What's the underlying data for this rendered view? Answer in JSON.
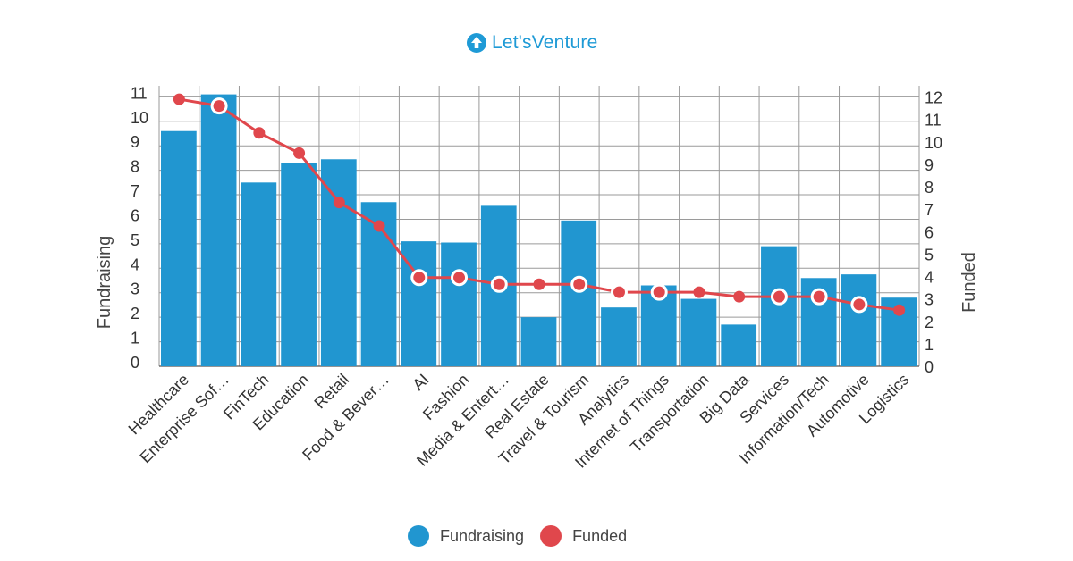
{
  "brand": {
    "name": "Let'sVenture",
    "color": "#1e9ad6"
  },
  "colors": {
    "bar": "#2196d0",
    "line": "#e0474c",
    "grid": "#9a9a9a",
    "text": "#333333"
  },
  "chart_data": {
    "type": "bar",
    "categories": [
      "Healthcare",
      "Enterprise Sof…",
      "FinTech",
      "Education",
      "Retail",
      "Food & Bever…",
      "AI",
      "Fashion",
      "Media & Entert…",
      "Real Estate",
      "Travel & Tourism",
      "Analytics",
      "Internet of Things",
      "Transportation",
      "Big Data",
      "Services",
      "Information/Tech",
      "Automotive",
      "Logistics"
    ],
    "series": [
      {
        "name": "Fundraising",
        "type": "bar",
        "axis": "left",
        "values": [
          9.6,
          11.1,
          7.5,
          8.3,
          8.45,
          6.7,
          5.1,
          5.05,
          6.55,
          2.0,
          5.95,
          2.4,
          3.3,
          2.75,
          1.7,
          4.9,
          3.6,
          3.75,
          2.8
        ]
      },
      {
        "name": "Funded",
        "type": "line",
        "axis": "right",
        "values": [
          11.9,
          11.6,
          10.4,
          9.5,
          7.3,
          6.25,
          3.95,
          3.95,
          3.65,
          3.65,
          3.65,
          3.3,
          3.3,
          3.3,
          3.1,
          3.1,
          3.1,
          2.75,
          2.5
        ]
      }
    ],
    "y_left": {
      "label": "Fundraising",
      "ticks": [
        0,
        1,
        2,
        3,
        4,
        5,
        6,
        7,
        8,
        9,
        10,
        11
      ],
      "range": [
        0,
        11.45
      ]
    },
    "y_right": {
      "label": "Funded",
      "ticks": [
        0,
        1,
        2,
        3,
        4,
        5,
        6,
        7,
        8,
        9,
        10,
        11,
        12
      ],
      "range": [
        0,
        12.5
      ]
    },
    "grid": true,
    "legend": {
      "position": "bottom",
      "items": [
        "Fundraising",
        "Funded"
      ]
    }
  }
}
